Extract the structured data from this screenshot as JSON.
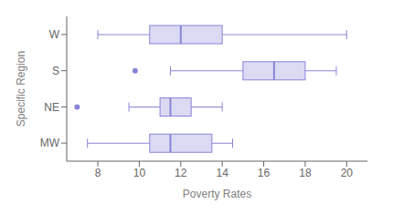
{
  "chart_data": {
    "type": "box",
    "orientation": "horizontal",
    "xlabel": "Poverty Rates",
    "ylabel": "Specific Region",
    "categories": [
      "W",
      "S",
      "NE",
      "MW"
    ],
    "boxes": [
      {
        "q1": 10.5,
        "median": 12.0,
        "q3": 14.0,
        "whislo": 8.0,
        "whishi": 20.0,
        "fliers": []
      },
      {
        "q1": 15.0,
        "median": 16.5,
        "q3": 18.0,
        "whislo": 11.5,
        "whishi": 19.5,
        "fliers": [
          9.8
        ]
      },
      {
        "q1": 11.0,
        "median": 11.5,
        "q3": 12.5,
        "whislo": 9.5,
        "whishi": 14.0,
        "fliers": [
          7.0
        ]
      },
      {
        "q1": 10.5,
        "median": 11.5,
        "q3": 13.5,
        "whislo": 7.5,
        "whishi": 14.5,
        "fliers": []
      }
    ],
    "xlim": [
      6.5,
      21.0
    ],
    "xticks": [
      8,
      10,
      12,
      14,
      16,
      18,
      20
    ],
    "color": "#8884d8",
    "grid": false
  }
}
